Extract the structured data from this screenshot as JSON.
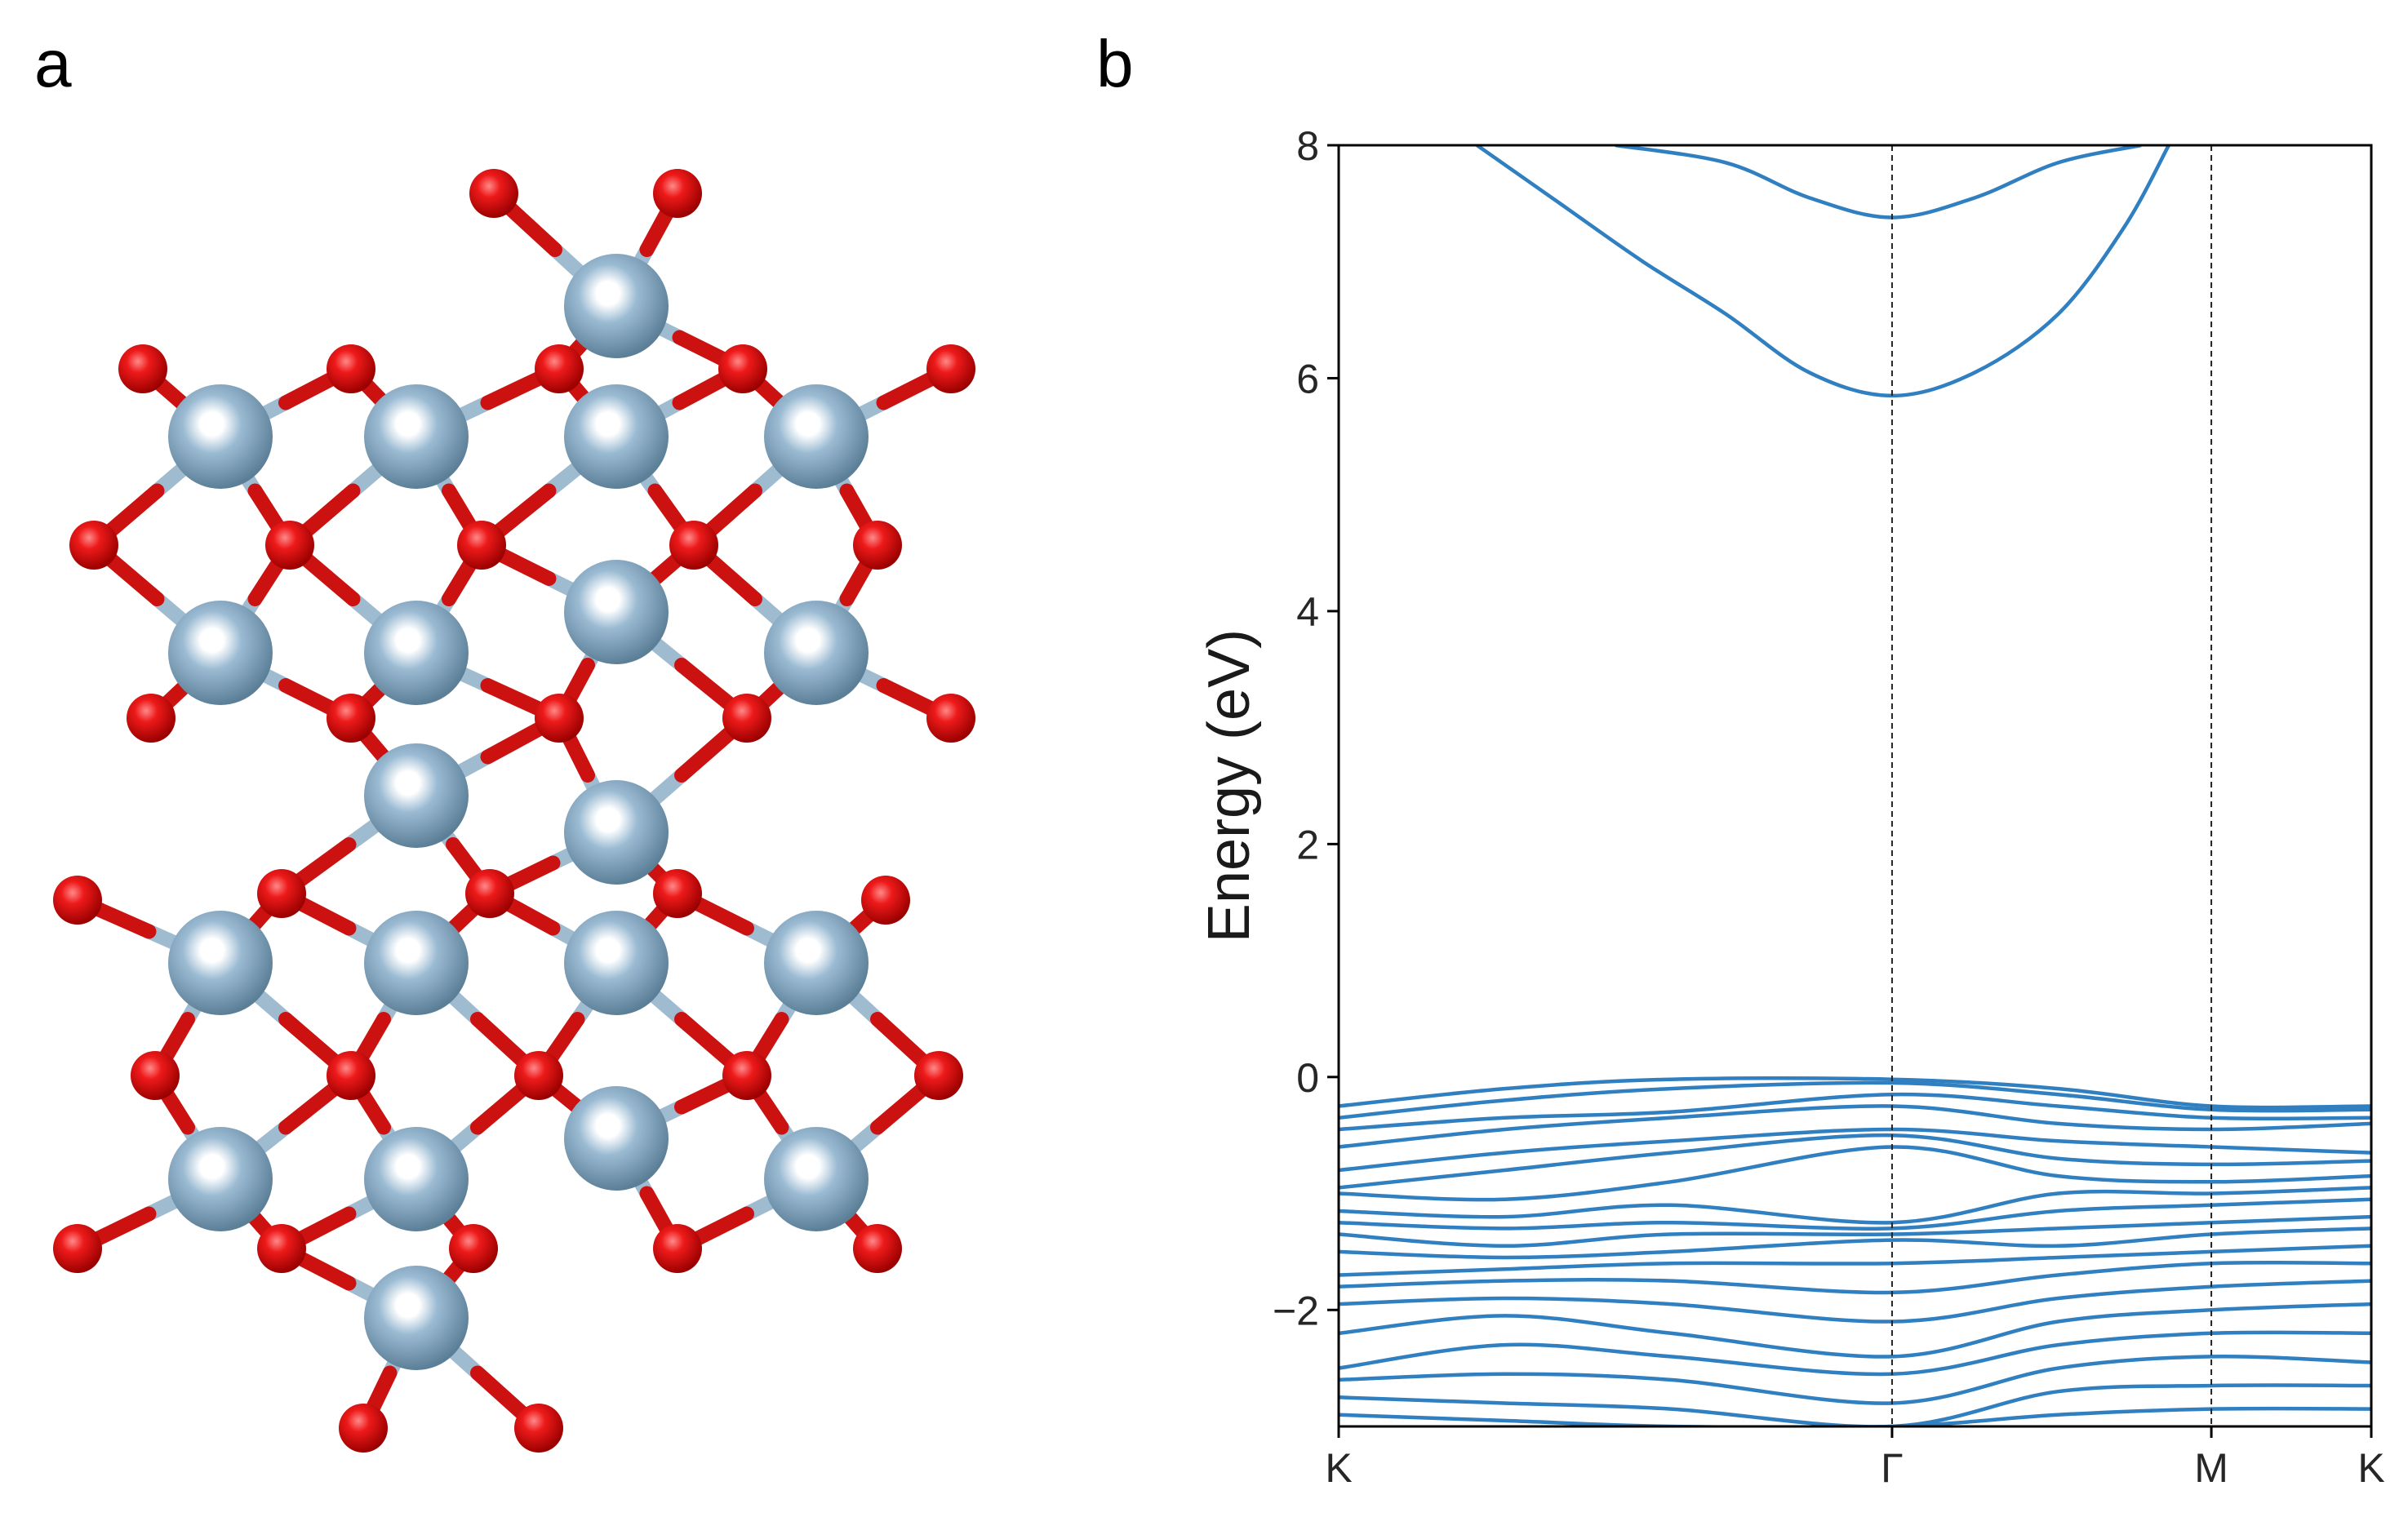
{
  "panels": {
    "a_label": "a",
    "b_label": "b"
  },
  "colors": {
    "band": "#2f7fc1",
    "atom_metal": "#8aaec7",
    "atom_oxygen": "#d00000",
    "bond_metal": "#9fbbd0",
    "bond_oxygen": "#cc1111"
  },
  "structure": {
    "metal_atoms": [
      [
        755,
        375
      ],
      [
        270,
        535
      ],
      [
        510,
        535
      ],
      [
        755,
        535
      ],
      [
        1000,
        535
      ],
      [
        270,
        800
      ],
      [
        510,
        800
      ],
      [
        755,
        750
      ],
      [
        1000,
        800
      ],
      [
        510,
        975
      ],
      [
        755,
        1020
      ],
      [
        270,
        1180
      ],
      [
        510,
        1180
      ],
      [
        755,
        1180
      ],
      [
        1000,
        1180
      ],
      [
        270,
        1445
      ],
      [
        510,
        1445
      ],
      [
        755,
        1395
      ],
      [
        1000,
        1445
      ],
      [
        510,
        1615
      ]
    ],
    "oxygen_atoms": [
      [
        605,
        237
      ],
      [
        830,
        237
      ],
      [
        175,
        452
      ],
      [
        430,
        452
      ],
      [
        685,
        452
      ],
      [
        910,
        452
      ],
      [
        1165,
        452
      ],
      [
        115,
        668
      ],
      [
        355,
        668
      ],
      [
        590,
        668
      ],
      [
        850,
        668
      ],
      [
        1075,
        668
      ],
      [
        185,
        880
      ],
      [
        430,
        880
      ],
      [
        685,
        880
      ],
      [
        915,
        880
      ],
      [
        1165,
        880
      ],
      [
        345,
        1095
      ],
      [
        600,
        1095
      ],
      [
        830,
        1095
      ],
      [
        95,
        1103
      ],
      [
        1085,
        1103
      ],
      [
        190,
        1318
      ],
      [
        430,
        1318
      ],
      [
        660,
        1318
      ],
      [
        915,
        1318
      ],
      [
        1150,
        1318
      ],
      [
        95,
        1530
      ],
      [
        345,
        1530
      ],
      [
        580,
        1530
      ],
      [
        830,
        1530
      ],
      [
        1075,
        1530
      ],
      [
        445,
        1750
      ],
      [
        660,
        1750
      ]
    ]
  },
  "chart_data": {
    "type": "line",
    "ylabel": "Energy (eV)",
    "xlabel": "",
    "ylim": [
      -3,
      8
    ],
    "yticks": [
      -2,
      0,
      2,
      4,
      6,
      8
    ],
    "ytick_labels": [
      "−2",
      "0",
      "2",
      "4",
      "6",
      "8"
    ],
    "xticks": [
      0,
      1,
      1.577,
      1.866
    ],
    "xtick_labels": [
      "K",
      "Γ",
      "M",
      "K"
    ],
    "xlim": [
      0,
      1.866
    ],
    "vlines": [
      1,
      1.577
    ],
    "grid": false,
    "conduction_bands": [
      {
        "name": "",
        "x": [
          0.25,
          0.4,
          0.55,
          0.7,
          0.85,
          1.0,
          1.15,
          1.3,
          1.42,
          1.5
        ],
        "y": [
          8.0,
          7.5,
          7.0,
          6.55,
          6.05,
          5.85,
          6.05,
          6.55,
          7.3,
          8.0
        ]
      },
      {
        "name": "",
        "x": [
          0.5,
          0.7,
          0.85,
          1.0,
          1.15,
          1.3,
          1.45
        ],
        "y": [
          8.0,
          7.85,
          7.55,
          7.38,
          7.55,
          7.85,
          8.0
        ]
      }
    ],
    "valence_bands": [
      {
        "name": "",
        "x": [
          0,
          0.3,
          0.6,
          1.0,
          1.3,
          1.577,
          1.866
        ],
        "y": [
          -0.25,
          -0.1,
          -0.02,
          -0.02,
          -0.1,
          -0.25,
          -0.25
        ]
      },
      {
        "name": "",
        "x": [
          0,
          0.3,
          0.6,
          1.0,
          1.3,
          1.577,
          1.866
        ],
        "y": [
          -0.35,
          -0.2,
          -0.1,
          -0.05,
          -0.15,
          -0.28,
          -0.28
        ]
      },
      {
        "name": "",
        "x": [
          0,
          0.3,
          0.6,
          1.0,
          1.3,
          1.577,
          1.866
        ],
        "y": [
          -0.45,
          -0.35,
          -0.3,
          -0.15,
          -0.25,
          -0.35,
          -0.35
        ]
      },
      {
        "name": "",
        "x": [
          0,
          0.3,
          0.6,
          1.0,
          1.3,
          1.577,
          1.866
        ],
        "y": [
          -0.6,
          -0.45,
          -0.35,
          -0.25,
          -0.4,
          -0.45,
          -0.4
        ]
      },
      {
        "name": "",
        "x": [
          0,
          0.3,
          0.6,
          1.0,
          1.3,
          1.577,
          1.866
        ],
        "y": [
          -0.8,
          -0.65,
          -0.55,
          -0.45,
          -0.55,
          -0.6,
          -0.65
        ]
      },
      {
        "name": "",
        "x": [
          0,
          0.3,
          0.6,
          1.0,
          1.3,
          1.577,
          1.866
        ],
        "y": [
          -0.95,
          -0.8,
          -0.65,
          -0.5,
          -0.7,
          -0.75,
          -0.72
        ]
      },
      {
        "name": "",
        "x": [
          0,
          0.3,
          0.6,
          1.0,
          1.3,
          1.577,
          1.866
        ],
        "y": [
          -1.0,
          -1.05,
          -0.9,
          -0.6,
          -0.85,
          -0.9,
          -0.85
        ]
      },
      {
        "name": "",
        "x": [
          0,
          0.3,
          0.6,
          1.0,
          1.3,
          1.577,
          1.866
        ],
        "y": [
          -1.15,
          -1.2,
          -1.1,
          -1.25,
          -1.0,
          -1.0,
          -0.95
        ]
      },
      {
        "name": "",
        "x": [
          0,
          0.3,
          0.6,
          1.0,
          1.3,
          1.577,
          1.866
        ],
        "y": [
          -1.25,
          -1.3,
          -1.25,
          -1.3,
          -1.15,
          -1.1,
          -1.05
        ]
      },
      {
        "name": "",
        "x": [
          0,
          0.3,
          0.6,
          1.0,
          1.3,
          1.577,
          1.866
        ],
        "y": [
          -1.35,
          -1.45,
          -1.35,
          -1.35,
          -1.3,
          -1.25,
          -1.2
        ]
      },
      {
        "name": "",
        "x": [
          0,
          0.3,
          0.6,
          1.0,
          1.3,
          1.577,
          1.866
        ],
        "y": [
          -1.5,
          -1.55,
          -1.5,
          -1.4,
          -1.45,
          -1.35,
          -1.3
        ]
      },
      {
        "name": "",
        "x": [
          0,
          0.3,
          0.6,
          1.0,
          1.3,
          1.577,
          1.866
        ],
        "y": [
          -1.7,
          -1.65,
          -1.6,
          -1.6,
          -1.55,
          -1.5,
          -1.45
        ]
      },
      {
        "name": "",
        "x": [
          0,
          0.3,
          0.6,
          1.0,
          1.3,
          1.577,
          1.866
        ],
        "y": [
          -1.8,
          -1.75,
          -1.75,
          -1.85,
          -1.7,
          -1.6,
          -1.6
        ]
      },
      {
        "name": "",
        "x": [
          0,
          0.3,
          0.6,
          1.0,
          1.3,
          1.577,
          1.866
        ],
        "y": [
          -1.95,
          -1.9,
          -1.95,
          -2.1,
          -1.9,
          -1.8,
          -1.75
        ]
      },
      {
        "name": "",
        "x": [
          0,
          0.3,
          0.6,
          1.0,
          1.3,
          1.577,
          1.866
        ],
        "y": [
          -2.2,
          -2.05,
          -2.2,
          -2.4,
          -2.1,
          -2.0,
          -1.95
        ]
      },
      {
        "name": "",
        "x": [
          0,
          0.3,
          0.6,
          1.0,
          1.3,
          1.577,
          1.866
        ],
        "y": [
          -2.5,
          -2.3,
          -2.4,
          -2.55,
          -2.3,
          -2.2,
          -2.2
        ]
      },
      {
        "name": "",
        "x": [
          0,
          0.3,
          0.6,
          1.0,
          1.3,
          1.577,
          1.866
        ],
        "y": [
          -2.6,
          -2.55,
          -2.6,
          -2.8,
          -2.5,
          -2.4,
          -2.45
        ]
      },
      {
        "name": "",
        "x": [
          0,
          0.3,
          0.6,
          1.0,
          1.3,
          1.577,
          1.866
        ],
        "y": [
          -2.75,
          -2.8,
          -2.85,
          -3.0,
          -2.7,
          -2.65,
          -2.65
        ]
      },
      {
        "name": "",
        "x": [
          0,
          0.3,
          0.6,
          1.0,
          1.3,
          1.577,
          1.866
        ],
        "y": [
          -2.9,
          -2.95,
          -3.0,
          -3.0,
          -2.9,
          -2.85,
          -2.85
        ]
      }
    ]
  }
}
